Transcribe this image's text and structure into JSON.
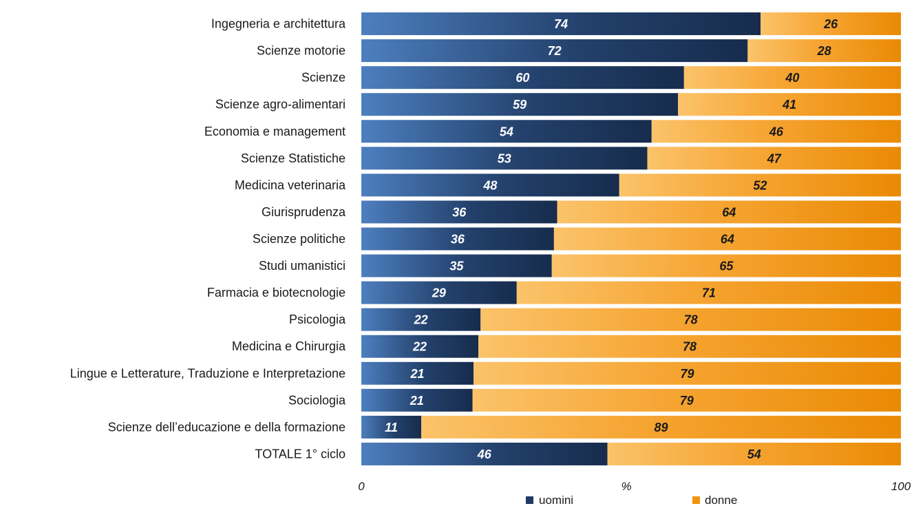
{
  "chart_data": {
    "type": "bar",
    "orientation": "horizontal",
    "stacked": true,
    "title": "",
    "xlabel": "%",
    "ylabel": "",
    "xlim": [
      0,
      100
    ],
    "x_ticks": [
      "0",
      "100"
    ],
    "categories": [
      "Ingegneria e architettura",
      "Scienze motorie",
      "Scienze",
      "Scienze agro-alimentari",
      "Economia e management",
      "Scienze Statistiche",
      "Medicina veterinaria",
      "Giurisprudenza",
      "Scienze politiche",
      "Studi umanistici",
      "Farmacia e biotecnologie",
      "Psicologia",
      "Medicina e Chirurgia",
      "Lingue e Letterature, Traduzione e Interpretazione",
      "Sociologia",
      "Scienze dell’educazione e della formazione",
      "TOTALE 1° ciclo"
    ],
    "series": [
      {
        "name": "uomini",
        "color": "#1f3a63",
        "values": [
          74,
          72,
          60,
          59,
          54,
          53,
          48,
          36,
          36,
          35,
          29,
          22,
          22,
          21,
          21,
          11,
          46
        ],
        "plot_values": [
          74,
          71.6,
          59.8,
          58.7,
          53.8,
          53,
          47.8,
          36.3,
          35.7,
          35.3,
          28.8,
          22.1,
          21.7,
          20.8,
          20.6,
          11.1,
          45.6
        ]
      },
      {
        "name": "donne",
        "color": "#f0930e",
        "values": [
          26,
          28,
          40,
          41,
          46,
          47,
          52,
          64,
          64,
          65,
          71,
          78,
          78,
          79,
          79,
          89,
          54
        ]
      }
    ],
    "legend": {
      "position": "bottom"
    }
  }
}
